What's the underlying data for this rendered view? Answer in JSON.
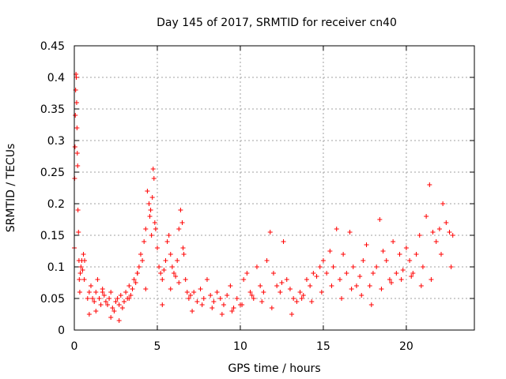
{
  "chart_data": {
    "type": "scatter",
    "title": "Day 145 of 2017, SRMTID for receiver cn40",
    "xlabel": "GPS time / hours",
    "ylabel": "SRMTID / TECUs",
    "xlim": [
      0,
      24.1
    ],
    "ylim": [
      0,
      0.45
    ],
    "grid": true,
    "marker": "+",
    "marker_color": "#ff0000",
    "xticks": [
      {
        "value": 0,
        "label": "0"
      },
      {
        "value": 5,
        "label": "5"
      },
      {
        "value": 10,
        "label": "10"
      },
      {
        "value": 15,
        "label": "15"
      },
      {
        "value": 20,
        "label": "20"
      }
    ],
    "yticks": [
      {
        "value": 0,
        "label": "0"
      },
      {
        "value": 0.05,
        "label": "0.05"
      },
      {
        "value": 0.1,
        "label": "0.1"
      },
      {
        "value": 0.15,
        "label": "0.15"
      },
      {
        "value": 0.2,
        "label": "0.2"
      },
      {
        "value": 0.25,
        "label": "0.25"
      },
      {
        "value": 0.3,
        "label": "0.3"
      },
      {
        "value": 0.35,
        "label": "0.35"
      },
      {
        "value": 0.4,
        "label": "0.4"
      },
      {
        "value": 0.45,
        "label": "0.45"
      }
    ],
    "series": [
      {
        "name": "SRMTID",
        "x": [
          0.0,
          0.02,
          0.04,
          0.06,
          0.08,
          0.1,
          0.12,
          0.14,
          0.16,
          0.18,
          0.2,
          0.22,
          0.25,
          0.28,
          0.3,
          0.33,
          0.36,
          0.4,
          0.45,
          0.5,
          0.55,
          0.6,
          0.62,
          0.8,
          0.9,
          1.0,
          1.1,
          1.2,
          1.3,
          1.4,
          1.5,
          1.6,
          1.7,
          1.8,
          1.9,
          2.0,
          2.1,
          2.2,
          2.3,
          2.4,
          2.5,
          2.6,
          2.7,
          2.8,
          2.9,
          3.0,
          3.1,
          3.2,
          3.3,
          3.4,
          3.5,
          3.6,
          3.7,
          3.8,
          3.9,
          4.0,
          4.1,
          4.2,
          4.3,
          4.4,
          4.5,
          4.55,
          4.6,
          4.65,
          4.7,
          4.75,
          4.8,
          4.85,
          4.9,
          5.0,
          5.1,
          5.2,
          5.3,
          5.4,
          5.5,
          5.6,
          5.7,
          5.8,
          5.9,
          6.0,
          6.1,
          6.2,
          6.3,
          6.4,
          6.5,
          6.55,
          6.6,
          6.7,
          6.8,
          6.9,
          7.0,
          7.2,
          7.4,
          7.6,
          7.8,
          8.0,
          8.2,
          8.4,
          8.6,
          8.8,
          9.0,
          9.2,
          9.4,
          9.6,
          9.8,
          10.0,
          10.2,
          10.4,
          10.6,
          10.8,
          11.0,
          11.2,
          11.4,
          11.6,
          11.8,
          12.0,
          12.2,
          12.4,
          12.6,
          12.8,
          13.0,
          13.2,
          13.4,
          13.6,
          13.8,
          14.0,
          14.2,
          14.4,
          14.6,
          14.8,
          15.0,
          15.2,
          15.4,
          15.6,
          15.8,
          16.0,
          16.2,
          16.4,
          16.6,
          16.8,
          17.0,
          17.2,
          17.4,
          17.6,
          17.8,
          18.0,
          18.2,
          18.4,
          18.6,
          18.8,
          19.0,
          19.2,
          19.4,
          19.6,
          19.8,
          20.0,
          20.2,
          20.4,
          20.6,
          20.8,
          21.0,
          21.2,
          21.4,
          21.6,
          21.8,
          22.0,
          22.2,
          22.4,
          22.6,
          22.8,
          0.9,
          1.3,
          1.7,
          2.2,
          2.7,
          3.3,
          3.8,
          4.3,
          5.3,
          5.8,
          6.3,
          7.1,
          7.7,
          8.3,
          8.9,
          9.5,
          10.1,
          10.7,
          11.3,
          11.9,
          12.5,
          13.1,
          13.7,
          14.3,
          14.9,
          15.5,
          16.1,
          16.7,
          17.3,
          17.9,
          18.5,
          19.1,
          19.7,
          20.3,
          20.9,
          21.5,
          22.1,
          22.7
        ],
        "y": [
          0.13,
          0.24,
          0.29,
          0.34,
          0.38,
          0.405,
          0.4,
          0.36,
          0.32,
          0.28,
          0.26,
          0.19,
          0.155,
          0.11,
          0.08,
          0.06,
          0.09,
          0.1,
          0.11,
          0.095,
          0.12,
          0.08,
          0.11,
          0.05,
          0.06,
          0.07,
          0.05,
          0.045,
          0.06,
          0.08,
          0.05,
          0.04,
          0.065,
          0.055,
          0.045,
          0.04,
          0.05,
          0.06,
          0.035,
          0.03,
          0.045,
          0.05,
          0.04,
          0.055,
          0.035,
          0.045,
          0.06,
          0.05,
          0.07,
          0.055,
          0.065,
          0.08,
          0.075,
          0.09,
          0.1,
          0.12,
          0.11,
          0.14,
          0.16,
          0.22,
          0.2,
          0.18,
          0.19,
          0.15,
          0.21,
          0.255,
          0.24,
          0.17,
          0.16,
          0.13,
          0.1,
          0.09,
          0.08,
          0.095,
          0.11,
          0.14,
          0.15,
          0.12,
          0.1,
          0.09,
          0.085,
          0.11,
          0.16,
          0.19,
          0.17,
          0.13,
          0.12,
          0.08,
          0.06,
          0.05,
          0.055,
          0.06,
          0.045,
          0.065,
          0.05,
          0.08,
          0.055,
          0.045,
          0.06,
          0.05,
          0.04,
          0.055,
          0.07,
          0.035,
          0.05,
          0.04,
          0.08,
          0.09,
          0.06,
          0.05,
          0.1,
          0.07,
          0.06,
          0.11,
          0.155,
          0.09,
          0.07,
          0.06,
          0.14,
          0.08,
          0.065,
          0.05,
          0.045,
          0.06,
          0.055,
          0.08,
          0.07,
          0.09,
          0.085,
          0.1,
          0.11,
          0.09,
          0.125,
          0.1,
          0.16,
          0.08,
          0.12,
          0.09,
          0.155,
          0.1,
          0.07,
          0.085,
          0.11,
          0.135,
          0.07,
          0.09,
          0.1,
          0.175,
          0.125,
          0.11,
          0.08,
          0.14,
          0.09,
          0.12,
          0.095,
          0.13,
          0.11,
          0.09,
          0.12,
          0.15,
          0.1,
          0.18,
          0.23,
          0.155,
          0.14,
          0.16,
          0.2,
          0.17,
          0.155,
          0.15,
          0.025,
          0.03,
          0.06,
          0.02,
          0.015,
          0.05,
          0.09,
          0.065,
          0.04,
          0.065,
          0.075,
          0.03,
          0.04,
          0.035,
          0.025,
          0.03,
          0.04,
          0.055,
          0.045,
          0.035,
          0.075,
          0.025,
          0.05,
          0.045,
          0.06,
          0.07,
          0.05,
          0.065,
          0.055,
          0.04,
          0.065,
          0.075,
          0.08,
          0.085,
          0.07,
          0.08,
          0.12,
          0.1
        ]
      }
    ]
  }
}
